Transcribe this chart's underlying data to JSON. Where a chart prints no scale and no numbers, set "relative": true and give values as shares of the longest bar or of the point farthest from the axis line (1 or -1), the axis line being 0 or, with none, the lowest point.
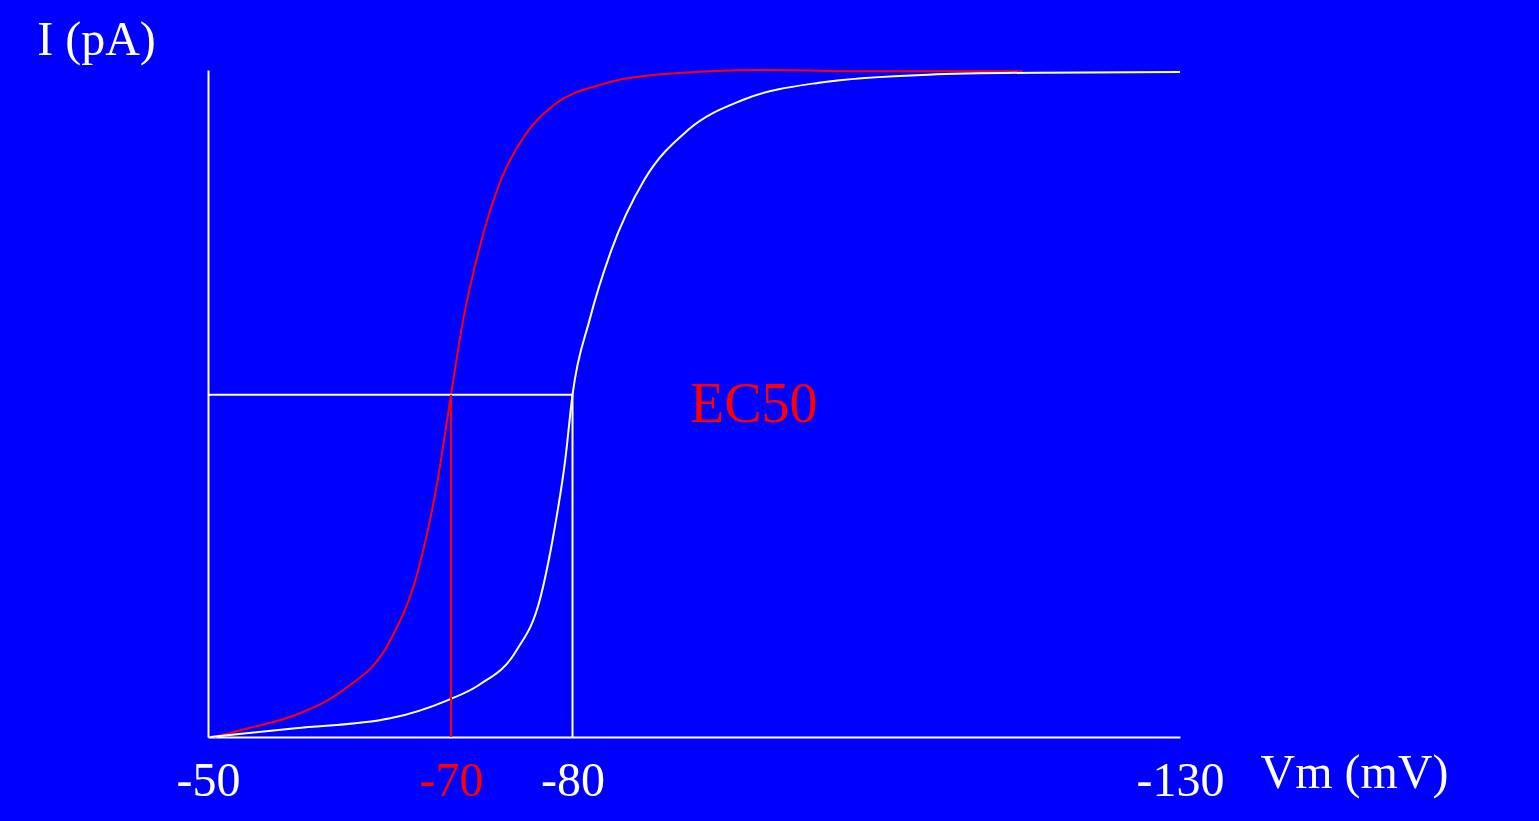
{
  "chart_data": {
    "type": "line",
    "relative": true,
    "xlabel": "Vm (mV)",
    "ylabel": "I (pA)",
    "xlim": [
      -50,
      -130
    ],
    "xticks": [
      -50,
      -70,
      -80,
      -130
    ],
    "annotations": [
      "EC50"
    ],
    "series": [
      {
        "color": "#ff0000",
        "x": [
          -50.5,
          -53.3,
          -57.2,
          -61.1,
          -65,
          -67.3,
          -68.9,
          -70,
          -71,
          -72.3,
          -74.1,
          -76,
          -78.5,
          -82.3,
          -86.8,
          -95.8,
          -104.8,
          -117
        ],
        "values": [
          0,
          0.013,
          0.033,
          0.07,
          0.145,
          0.25,
          0.385,
          0.513,
          0.625,
          0.73,
          0.835,
          0.9,
          0.948,
          0.978,
          0.993,
          1,
          0.998,
          0.998
        ]
      },
      {
        "color": "#ffffff",
        "x": [
          -50.2,
          -57.2,
          -65,
          -69.7,
          -72.3,
          -75.4,
          -77.3,
          -78.5,
          -79.4,
          -80,
          -81.4,
          -83.2,
          -85.9,
          -89.5,
          -94,
          -100.3,
          -109.3,
          -118.3,
          -130
        ],
        "values": [
          0,
          0.013,
          0.028,
          0.055,
          0.078,
          0.13,
          0.205,
          0.31,
          0.415,
          0.513,
          0.625,
          0.73,
          0.835,
          0.91,
          0.955,
          0.981,
          0.993,
          0.996,
          0.997
        ]
      },
      {
        "color": "#ffffff",
        "x": [
          -50,
          -80
        ],
        "values": [
          0.513,
          0.513
        ]
      },
      {
        "color": "#ff0000",
        "x": [
          -70,
          -70
        ],
        "values": [
          0,
          0.513
        ]
      },
      {
        "color": "#ffffff",
        "x": [
          -80,
          -80
        ],
        "values": [
          0,
          0.513
        ]
      }
    ]
  }
}
